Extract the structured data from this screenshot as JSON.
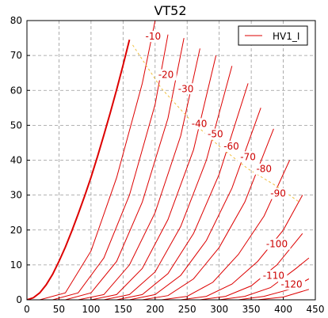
{
  "chart_data": {
    "type": "line",
    "title": "VT52",
    "xlabel": "",
    "ylabel": "",
    "xlim": [
      0,
      450
    ],
    "ylim": [
      0,
      80
    ],
    "x_ticks": [
      "0",
      "50",
      "100",
      "150",
      "200",
      "250",
      "300",
      "350",
      "400",
      "450"
    ],
    "y_ticks": [
      "0",
      "10",
      "20",
      "30",
      "40",
      "50",
      "60",
      "70",
      "80"
    ],
    "grid": true,
    "legend": {
      "position": "top-right",
      "entries": [
        "HV1_I"
      ]
    },
    "colors": {
      "curves": "#dd0000",
      "load_line": "#f0c040",
      "grid": "#999999"
    },
    "series": [
      {
        "name": "HV1_I",
        "grid_voltage": 0,
        "x": [
          0,
          10,
          20,
          30,
          40,
          50,
          60,
          70,
          80,
          90,
          100,
          110,
          120,
          130,
          140,
          150,
          160
        ],
        "y": [
          0,
          0.6,
          2,
          4.3,
          7.3,
          11,
          15.1,
          19.7,
          24.6,
          29.7,
          35.1,
          41,
          47.2,
          53.6,
          60.2,
          67.2,
          74.5
        ]
      },
      {
        "label": "-10",
        "grid_voltage": -10,
        "x": [
          20,
          60,
          100,
          140,
          180,
          200
        ],
        "y": [
          0,
          2,
          14,
          35,
          62,
          80
        ]
      },
      {
        "label": "-20",
        "grid_voltage": -20,
        "x": [
          40,
          80,
          120,
          160,
          200,
          220
        ],
        "y": [
          0,
          2,
          12,
          30,
          56,
          76
        ]
      },
      {
        "label": "-30",
        "grid_voltage": -30,
        "x": [
          60,
          100,
          140,
          180,
          220,
          245
        ],
        "y": [
          0,
          2,
          11,
          28,
          52,
          75
        ]
      },
      {
        "label": "-40",
        "grid_voltage": -40,
        "x": [
          80,
          120,
          160,
          200,
          240,
          270
        ],
        "y": [
          0,
          1.5,
          10,
          25,
          47,
          72
        ]
      },
      {
        "label": "-50",
        "grid_voltage": -50,
        "x": [
          100,
          140,
          180,
          220,
          260,
          295
        ],
        "y": [
          0,
          1.5,
          9,
          23,
          43,
          70
        ]
      },
      {
        "label": "-60",
        "grid_voltage": -60,
        "x": [
          120,
          160,
          200,
          240,
          280,
          320
        ],
        "y": [
          0,
          1.5,
          8,
          21,
          40,
          67
        ]
      },
      {
        "label": "-70",
        "grid_voltage": -70,
        "x": [
          140,
          180,
          220,
          260,
          300,
          345
        ],
        "y": [
          0,
          1.5,
          7.5,
          19,
          36,
          62
        ]
      },
      {
        "label": "-80",
        "grid_voltage": -80,
        "x": [
          160,
          200,
          240,
          280,
          320,
          365
        ],
        "y": [
          0,
          1.5,
          7,
          17,
          32,
          55
        ]
      },
      {
        "label": "-90",
        "grid_voltage": -90,
        "x": [
          180,
          220,
          260,
          300,
          340,
          385
        ],
        "y": [
          0,
          1.2,
          6,
          15,
          28,
          49
        ]
      },
      {
        "label": "-100",
        "grid_voltage": -100,
        "x": [
          210,
          250,
          290,
          330,
          370,
          410
        ],
        "y": [
          0,
          1,
          5,
          13,
          24,
          40
        ]
      },
      {
        "label": "-110",
        "grid_voltage": -110,
        "x": [
          240,
          280,
          320,
          360,
          400,
          430
        ],
        "y": [
          0,
          1,
          4.5,
          11,
          20,
          30
        ]
      },
      {
        "label": "-120",
        "grid_voltage": -120,
        "x": [
          270,
          310,
          350,
          390,
          430
        ],
        "y": [
          0,
          1,
          4,
          10,
          19
        ]
      },
      {
        "label": "",
        "grid_voltage": -130,
        "x": [
          300,
          340,
          380,
          420,
          440
        ],
        "y": [
          0,
          1,
          3.5,
          9,
          12
        ]
      },
      {
        "label": "",
        "grid_voltage": -140,
        "x": [
          330,
          370,
          410,
          440
        ],
        "y": [
          0,
          1,
          3,
          6
        ]
      },
      {
        "label": "",
        "grid_voltage": -150,
        "x": [
          360,
          400,
          440
        ],
        "y": [
          0,
          0.8,
          3
        ]
      }
    ],
    "curve_labels": [
      {
        "text": "-10",
        "x": 197,
        "y": 75
      },
      {
        "text": "-20",
        "x": 217,
        "y": 64
      },
      {
        "text": "-30",
        "x": 248,
        "y": 60
      },
      {
        "text": "-40",
        "x": 269,
        "y": 50
      },
      {
        "text": "-50",
        "x": 294,
        "y": 47
      },
      {
        "text": "-60",
        "x": 319,
        "y": 43.5
      },
      {
        "text": "-70",
        "x": 345,
        "y": 40.5
      },
      {
        "text": "-80",
        "x": 370,
        "y": 37
      },
      {
        "text": "-90",
        "x": 392,
        "y": 30
      },
      {
        "text": "-100",
        "x": 390,
        "y": 15.5
      },
      {
        "text": "-110",
        "x": 385,
        "y": 6.5
      },
      {
        "text": "-120",
        "x": 413,
        "y": 4
      }
    ],
    "load_line": {
      "x": [
        165,
        210,
        255,
        300,
        345,
        390,
        425
      ],
      "y": [
        73,
        60.5,
        51.5,
        44,
        37.5,
        32.5,
        28
      ]
    }
  }
}
